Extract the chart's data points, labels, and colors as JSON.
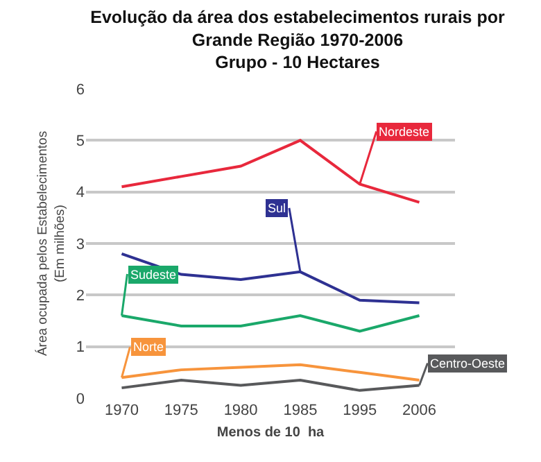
{
  "chart_data": {
    "type": "line",
    "title": "Evolução da área dos estabelecimentos rurais por\nGrande Região 1970-2006\nGrupo - 10 Hectares",
    "xlabel": "Menos de 10  ha",
    "ylabel": "Área ocupada pelos Estabelecimentos\n(Em milhões)",
    "categories": [
      "1970",
      "1975",
      "1980",
      "1985",
      "1995",
      "2006"
    ],
    "series": [
      {
        "name": "Nordeste",
        "color": "#e8283c",
        "values": [
          4.1,
          4.3,
          4.5,
          5.0,
          4.15,
          3.8
        ]
      },
      {
        "name": "Sul",
        "color": "#2e3192",
        "values": [
          2.8,
          2.4,
          2.3,
          2.45,
          1.9,
          1.85
        ]
      },
      {
        "name": "Sudeste",
        "color": "#1aa86a",
        "values": [
          1.6,
          1.4,
          1.4,
          1.6,
          1.3,
          1.6
        ]
      },
      {
        "name": "Norte",
        "color": "#f7943c",
        "values": [
          0.4,
          0.55,
          0.6,
          0.65,
          0.5,
          0.35
        ]
      },
      {
        "name": "Centro-Oeste",
        "color": "#58595b",
        "values": [
          0.2,
          0.35,
          0.25,
          0.35,
          0.15,
          0.25
        ]
      }
    ],
    "ylim": [
      0,
      6
    ],
    "yticks": [
      0,
      1,
      2,
      3,
      4,
      5,
      6
    ],
    "grid": "y",
    "legend": false,
    "marker": "none",
    "line_style": "solid"
  }
}
